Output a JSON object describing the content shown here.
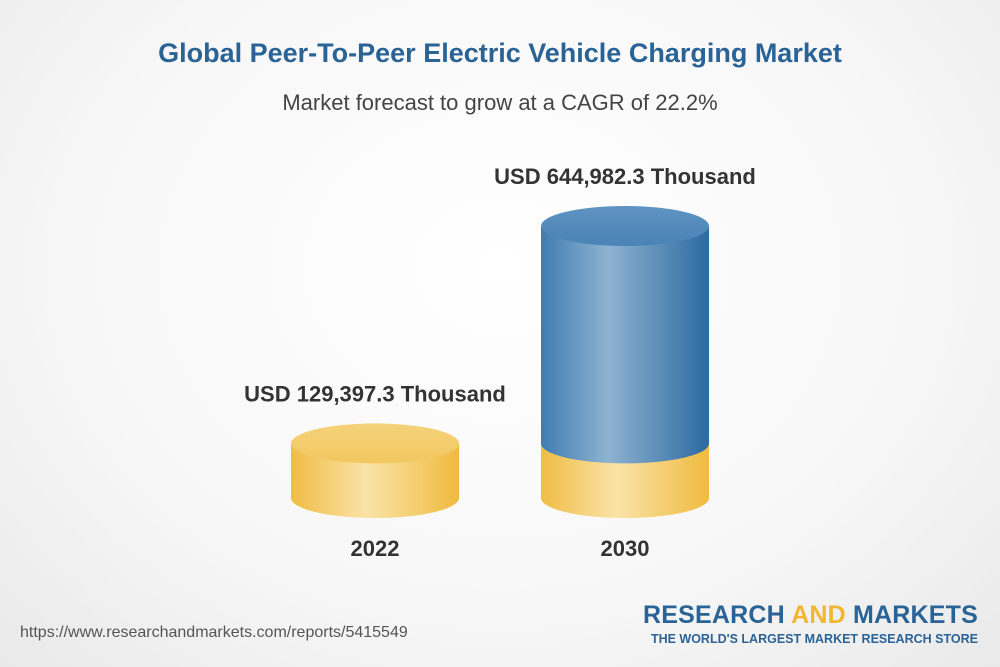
{
  "chart_data": {
    "type": "bar",
    "title": "Global Peer-To-Peer Electric Vehicle Charging Market",
    "subtitle": "Market forecast to grow at a CAGR of 22.2%",
    "categories": [
      "2022",
      "2030"
    ],
    "values": [
      129397.3,
      644982.3
    ],
    "value_labels": [
      "USD 129,397.3 Thousand",
      "USD 644,982.3 Thousand"
    ],
    "unit": "USD Thousand",
    "colors": {
      "base": "#f2c257",
      "growth": "#2f6ea1"
    }
  },
  "footer": {
    "url": "https://www.researchandmarkets.com/reports/5415549",
    "brand_part1": "RESEARCH ",
    "brand_part2": "AND",
    "brand_part3": " MARKETS",
    "tagline": "THE WORLD'S LARGEST MARKET RESEARCH STORE"
  }
}
